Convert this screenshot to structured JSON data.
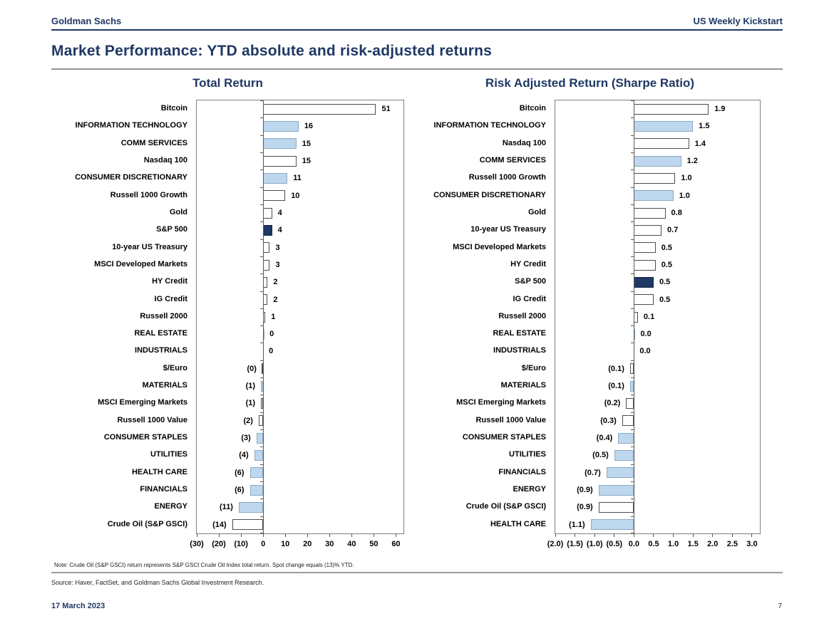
{
  "header": {
    "brand": "Goldman Sachs",
    "publication": "US Weekly Kickstart"
  },
  "page_title": "Market Performance: YTD absolute and risk-adjusted returns",
  "footer": {
    "note": "Note: Crude Oil (S&P GSCI) return represents S&P GSCI Crude Oil Index total return. Spot change equals (13)% YTD.",
    "source": "Source: Haver, FactSet, and Goldman Sachs Global Investment Research.",
    "date": "17 March 2023",
    "page_number": "7"
  },
  "colors": {
    "navy": "#1F3864",
    "bar_blue_fill": "#BDD7EE",
    "bar_blue_border": "#8CA9C4",
    "bar_white_border": "#4D4D4D",
    "plot_border": "#808080",
    "rule_gray": "#8E959C"
  },
  "chart_data": [
    {
      "type": "bar",
      "orientation": "horizontal",
      "title": "Total Return",
      "xlim": [
        -30,
        63.4
      ],
      "grid": false,
      "tick_values": [
        -30,
        -20,
        -10,
        0,
        10,
        20,
        30,
        40,
        50,
        60
      ],
      "tick_labels": [
        "(30)",
        "(20)",
        "(10)",
        "0",
        "10",
        "20",
        "30",
        "40",
        "50",
        "60"
      ],
      "bars": [
        {
          "category": "Bitcoin",
          "value": 51,
          "display": "51",
          "style": "white"
        },
        {
          "category": "INFORMATION TECHNOLOGY",
          "value": 16,
          "display": "16",
          "style": "blue"
        },
        {
          "category": "COMM SERVICES",
          "value": 15,
          "display": "15",
          "style": "blue"
        },
        {
          "category": "Nasdaq 100",
          "value": 15,
          "display": "15",
          "style": "white"
        },
        {
          "category": "CONSUMER DISCRETIONARY",
          "value": 11,
          "display": "11",
          "style": "blue"
        },
        {
          "category": "Russell 1000 Growth",
          "value": 10,
          "display": "10",
          "style": "white"
        },
        {
          "category": "Gold",
          "value": 4,
          "display": "4",
          "style": "white"
        },
        {
          "category": "S&P 500",
          "value": 4,
          "display": "4",
          "style": "navy"
        },
        {
          "category": "10-year US Treasury",
          "value": 3,
          "display": "3",
          "style": "white"
        },
        {
          "category": "MSCI Developed Markets",
          "value": 3,
          "display": "3",
          "style": "white"
        },
        {
          "category": "HY Credit",
          "value": 2,
          "display": "2",
          "style": "white"
        },
        {
          "category": "IG Credit",
          "value": 2,
          "display": "2",
          "style": "white"
        },
        {
          "category": "Russell 2000",
          "value": 1,
          "display": "1",
          "style": "white"
        },
        {
          "category": "REAL ESTATE",
          "value": 0.3,
          "display": "0",
          "style": "blue"
        },
        {
          "category": "INDUSTRIALS",
          "value": 0,
          "display": "0",
          "style": "blue"
        },
        {
          "category": "$/Euro",
          "value": -0.4,
          "display": "(0)",
          "style": "white"
        },
        {
          "category": "MATERIALS",
          "value": -1,
          "display": "(1)",
          "style": "blue"
        },
        {
          "category": "MSCI Emerging Markets",
          "value": -1,
          "display": "(1)",
          "style": "white"
        },
        {
          "category": "Russell 1000 Value",
          "value": -2,
          "display": "(2)",
          "style": "white"
        },
        {
          "category": "CONSUMER STAPLES",
          "value": -3,
          "display": "(3)",
          "style": "blue"
        },
        {
          "category": "UTILITIES",
          "value": -4,
          "display": "(4)",
          "style": "blue"
        },
        {
          "category": "HEALTH CARE",
          "value": -6,
          "display": "(6)",
          "style": "blue"
        },
        {
          "category": "FINANCIALS",
          "value": -6,
          "display": "(6)",
          "style": "blue"
        },
        {
          "category": "ENERGY",
          "value": -11,
          "display": "(11)",
          "style": "blue"
        },
        {
          "category": "Crude Oil (S&P GSCI)",
          "value": -14,
          "display": "(14)",
          "style": "white"
        }
      ]
    },
    {
      "type": "bar",
      "orientation": "horizontal",
      "title": "Risk Adjusted Return (Sharpe Ratio)",
      "xlim": [
        -2.0,
        3.2
      ],
      "grid": false,
      "tick_values": [
        -2.0,
        -1.5,
        -1.0,
        -0.5,
        0,
        0.5,
        1.0,
        1.5,
        2.0,
        2.5,
        3.0
      ],
      "tick_labels": [
        "(2.0)",
        "(1.5)",
        "(1.0)",
        "(0.5)",
        "0.0",
        "0.5",
        "1.0",
        "1.5",
        "2.0",
        "2.5",
        "3.0"
      ],
      "bars": [
        {
          "category": "Bitcoin",
          "value": 1.9,
          "display": "1.9",
          "style": "white"
        },
        {
          "category": "INFORMATION TECHNOLOGY",
          "value": 1.5,
          "display": "1.5",
          "style": "blue"
        },
        {
          "category": "Nasdaq 100",
          "value": 1.4,
          "display": "1.4",
          "style": "white"
        },
        {
          "category": "COMM SERVICES",
          "value": 1.2,
          "display": "1.2",
          "style": "blue"
        },
        {
          "category": "Russell 1000 Growth",
          "value": 1.05,
          "display": "1.0",
          "style": "white"
        },
        {
          "category": "CONSUMER DISCRETIONARY",
          "value": 1.0,
          "display": "1.0",
          "style": "blue"
        },
        {
          "category": "Gold",
          "value": 0.8,
          "display": "0.8",
          "style": "white"
        },
        {
          "category": "10-year US Treasury",
          "value": 0.7,
          "display": "0.7",
          "style": "white"
        },
        {
          "category": "MSCI Developed Markets",
          "value": 0.55,
          "display": "0.5",
          "style": "white"
        },
        {
          "category": "HY Credit",
          "value": 0.55,
          "display": "0.5",
          "style": "white"
        },
        {
          "category": "S&P 500",
          "value": 0.5,
          "display": "0.5",
          "style": "navy"
        },
        {
          "category": "IG Credit",
          "value": 0.5,
          "display": "0.5",
          "style": "white"
        },
        {
          "category": "Russell 2000",
          "value": 0.1,
          "display": "0.1",
          "style": "white"
        },
        {
          "category": "REAL ESTATE",
          "value": 0.02,
          "display": "0.0",
          "style": "blue"
        },
        {
          "category": "INDUSTRIALS",
          "value": 0,
          "display": "0.0",
          "style": "blue"
        },
        {
          "category": "$/Euro",
          "value": -0.1,
          "display": "(0.1)",
          "style": "white"
        },
        {
          "category": "MATERIALS",
          "value": -0.1,
          "display": "(0.1)",
          "style": "blue"
        },
        {
          "category": "MSCI Emerging Markets",
          "value": -0.2,
          "display": "(0.2)",
          "style": "white"
        },
        {
          "category": "Russell 1000 Value",
          "value": -0.3,
          "display": "(0.3)",
          "style": "white"
        },
        {
          "category": "CONSUMER STAPLES",
          "value": -0.4,
          "display": "(0.4)",
          "style": "blue"
        },
        {
          "category": "UTILITIES",
          "value": -0.5,
          "display": "(0.5)",
          "style": "blue"
        },
        {
          "category": "FINANCIALS",
          "value": -0.7,
          "display": "(0.7)",
          "style": "blue"
        },
        {
          "category": "ENERGY",
          "value": -0.9,
          "display": "(0.9)",
          "style": "blue"
        },
        {
          "category": "Crude Oil (S&P GSCI)",
          "value": -0.9,
          "display": "(0.9)",
          "style": "white"
        },
        {
          "category": "HEALTH CARE",
          "value": -1.1,
          "display": "(1.1)",
          "style": "blue"
        }
      ]
    }
  ]
}
